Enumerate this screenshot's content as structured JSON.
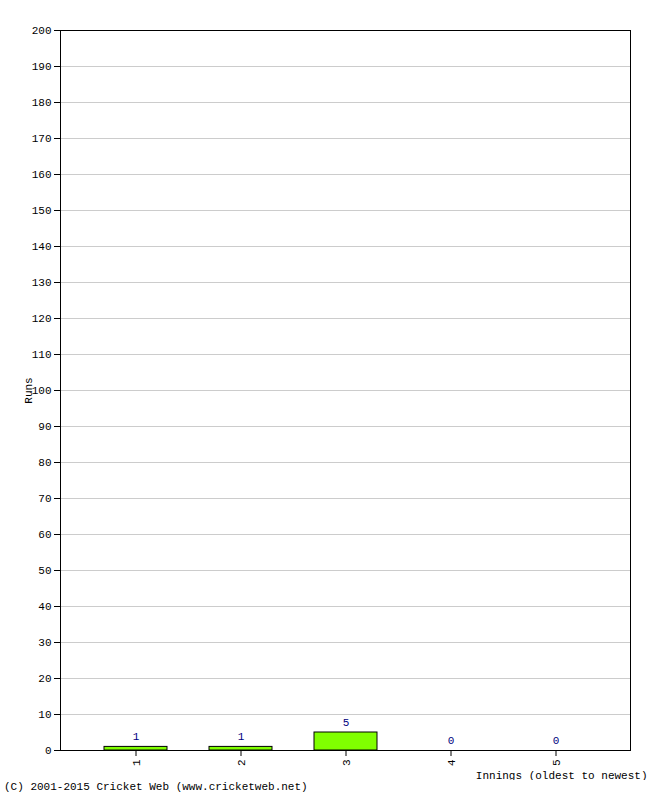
{
  "chart_data": {
    "type": "bar",
    "caption": "(C) 2001-2015 Cricket Web (www.cricketweb.net)",
    "x_label": "Innings (oldest to newest)",
    "y_label": "Runs",
    "categories": [
      "1",
      "2",
      "3",
      "4",
      "5"
    ],
    "values": [
      1,
      1,
      5,
      0,
      0
    ],
    "color": "#80ff00",
    "ylim": [
      0,
      200
    ],
    "yticks": [
      0,
      10,
      20,
      30,
      40,
      50,
      60,
      70,
      80,
      90,
      100,
      110,
      120,
      130,
      140,
      150,
      160,
      170,
      180,
      190,
      200
    ],
    "grid": true,
    "data_labels": true
  }
}
